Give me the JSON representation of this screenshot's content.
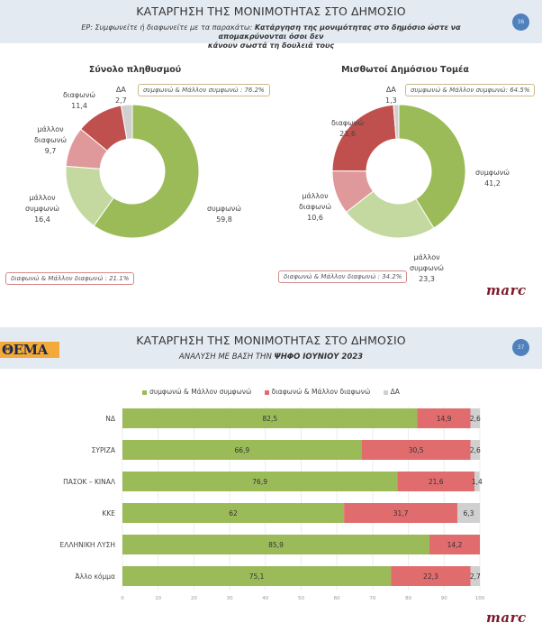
{
  "slide1": {
    "title": "ΚΑΤΑΡΓΗΣΗ ΤΗΣ ΜΟΝΙΜΟΤΗΤΑΣ ΣΤΟ ΔΗΜΟΣΙΟ",
    "question_prefix": "ΕΡ: Συμφωνείτε ή διαφωνείτε με τα παρακάτω:",
    "question_line1": "Κατάργηση της μονιμότητας στο δημόσιο ώστε να απομακρύνονται όσοι δεν",
    "question_line2": "κάνουν σωστά τη δουλειά τους",
    "page_number": "36",
    "brand": "marc"
  },
  "slide2": {
    "title": "ΚΑΤΑΡΓΗΣΗ ΤΗΣ ΜΟΝΙΜΟΤΗΤΑΣ ΣΤΟ ΔΗΜΟΣΙΟ",
    "subtitle_prefix": "ΑΝΑΛΥΣΗ ΜΕ ΒΑΣΗ ΤΗΝ",
    "subtitle_bold": "ΨΗΦΟ ΙΟΥΝΙΟΥ 2023",
    "page_number": "37",
    "logo": "ΘΕΜΑ",
    "brand": "marc"
  },
  "colors": {
    "agree": "#9bbb59",
    "somewhat_agree": "#c4d9a0",
    "somewhat_disagree": "#e0999a",
    "disagree": "#c0504d",
    "dk": "#d0d0d0",
    "bar_agree": "#9bbb59",
    "bar_disagree": "#e06c6e",
    "bar_dk": "#d0d0d0"
  },
  "chart_data": [
    {
      "type": "pie",
      "title": "Σύνολο πληθυσμού",
      "slices": [
        {
          "label": "συμφωνώ",
          "value": 59.8,
          "display": "59,8"
        },
        {
          "label": "μάλλον συμφωνώ",
          "value": 16.4,
          "display": "16,4"
        },
        {
          "label": "μάλλον διαφωνώ",
          "value": 9.7,
          "display": "9,7"
        },
        {
          "label": "διαφωνώ",
          "value": 11.4,
          "display": "11,4"
        },
        {
          "label": "ΔΑ",
          "value": 2.7,
          "display": "2,7"
        }
      ],
      "annotations": [
        "συμφωνώ & Μάλλον συμφωνώ : 76.2%",
        "διαφωνώ & Μάλλον διαφωνώ : 21.1%"
      ]
    },
    {
      "type": "pie",
      "title": "Μισθωτοί Δημόσιου Τομέα",
      "slices": [
        {
          "label": "συμφωνώ",
          "value": 41.2,
          "display": "41,2"
        },
        {
          "label": "μάλλον συμφωνώ",
          "value": 23.3,
          "display": "23,3"
        },
        {
          "label": "μάλλον διαφωνώ",
          "value": 10.6,
          "display": "10,6"
        },
        {
          "label": "διαφωνώ",
          "value": 23.6,
          "display": "23,6"
        },
        {
          "label": "ΔΑ",
          "value": 1.3,
          "display": "1,3"
        }
      ],
      "annotations": [
        "συμφωνώ & Μάλλον συμφωνώ: 64.5%",
        "διαφωνώ & Μάλλον διαφωνώ : 34.2%"
      ]
    },
    {
      "type": "bar",
      "orientation": "horizontal",
      "stacked": true,
      "categories": [
        "ΝΔ",
        "ΣΥΡΙΖΑ",
        "ΠΑΣΟΚ – ΚΙΝΑΛ",
        "ΚΚΕ",
        "ΕΛΛΗΝΙΚΗ ΛΥΣΗ",
        "Άλλο κόμμα"
      ],
      "series": [
        {
          "name": "συμφωνώ & Μάλλον συμφωνώ",
          "values": [
            82.5,
            66.9,
            76.9,
            62,
            85.9,
            75.1
          ],
          "display": [
            "82,5",
            "66,9",
            "76,9",
            "62",
            "85,9",
            "75,1"
          ]
        },
        {
          "name": "διαφωνώ & Μάλλον διαφωνώ",
          "values": [
            14.9,
            30.5,
            21.6,
            31.7,
            14.2,
            22.3
          ],
          "display": [
            "14,9",
            "30,5",
            "21,6",
            "31,7",
            "14,2",
            "22,3"
          ]
        },
        {
          "name": "ΔΑ",
          "values": [
            2.6,
            2.6,
            1.4,
            6.3,
            0,
            2.7
          ],
          "display": [
            "2,6",
            "2,6",
            "1,4",
            "6,3",
            "",
            "2,7"
          ]
        }
      ],
      "xlim": [
        0,
        100
      ],
      "xticks": [
        "0",
        "10",
        "20",
        "30",
        "40",
        "50",
        "60",
        "70",
        "80",
        "90",
        "100"
      ],
      "legend": "top",
      "grid": true
    }
  ]
}
